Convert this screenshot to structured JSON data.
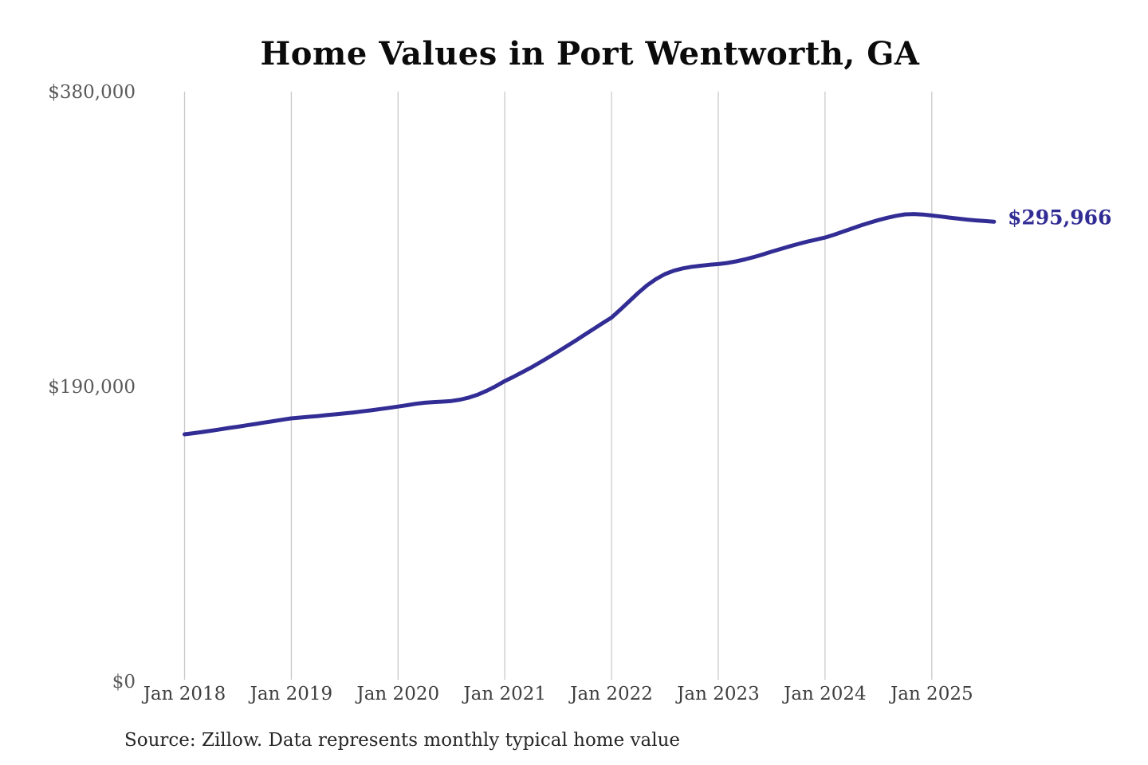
{
  "title": "Home Values in Port Wentworth, GA",
  "source_note": "Source: Zillow. Data represents monthly typical home value",
  "colors": {
    "line": "#322d94",
    "grid": "#c9c9c9",
    "y_label": "#595959",
    "x_label": "#3f3f3f",
    "end_label": "#322d94",
    "title": "#0b0b0b",
    "background": "#ffffff"
  },
  "chart_data": {
    "type": "line",
    "title": "Home Values in Port Wentworth, GA",
    "xlabel": "",
    "ylabel": "",
    "ylim": [
      0,
      380000
    ],
    "y_ticks": [
      0,
      190000,
      380000
    ],
    "y_tick_labels": [
      "$0",
      "$190,000",
      "$380,000"
    ],
    "x_tick_labels": [
      "Jan 2018",
      "Jan 2019",
      "Jan 2020",
      "Jan 2021",
      "Jan 2022",
      "Jan 2023",
      "Jan 2024",
      "Jan 2025"
    ],
    "grid": "vertical-only",
    "legend": "none",
    "end_label": "$295,966",
    "final_value": 295966,
    "series": [
      {
        "name": "Monthly typical home value",
        "start_month": "Jan 2018",
        "end_month": "Aug 2025",
        "frequency": "monthly",
        "values": [
          158600,
          159300,
          160100,
          160900,
          161800,
          162700,
          163500,
          164400,
          165300,
          166200,
          167100,
          168000,
          168900,
          169400,
          169900,
          170400,
          171000,
          171500,
          172100,
          172700,
          173400,
          174100,
          174900,
          175700,
          176500,
          177400,
          178300,
          179000,
          179400,
          179700,
          180100,
          181000,
          182400,
          184300,
          186800,
          189700,
          193000,
          195800,
          198800,
          201900,
          205200,
          208600,
          212100,
          215700,
          219300,
          223000,
          226700,
          230400,
          234000,
          239200,
          244600,
          250000,
          254900,
          258900,
          262100,
          264300,
          265800,
          266800,
          267500,
          268100,
          268600,
          269300,
          270300,
          271600,
          273100,
          274800,
          276600,
          278300,
          280000,
          281600,
          283100,
          284400,
          285700,
          287500,
          289500,
          291500,
          293500,
          295300,
          297000,
          298500,
          299800,
          300700,
          300900,
          300600,
          300000,
          299300,
          298600,
          297900,
          297300,
          296800,
          296400,
          295966
        ]
      }
    ]
  }
}
